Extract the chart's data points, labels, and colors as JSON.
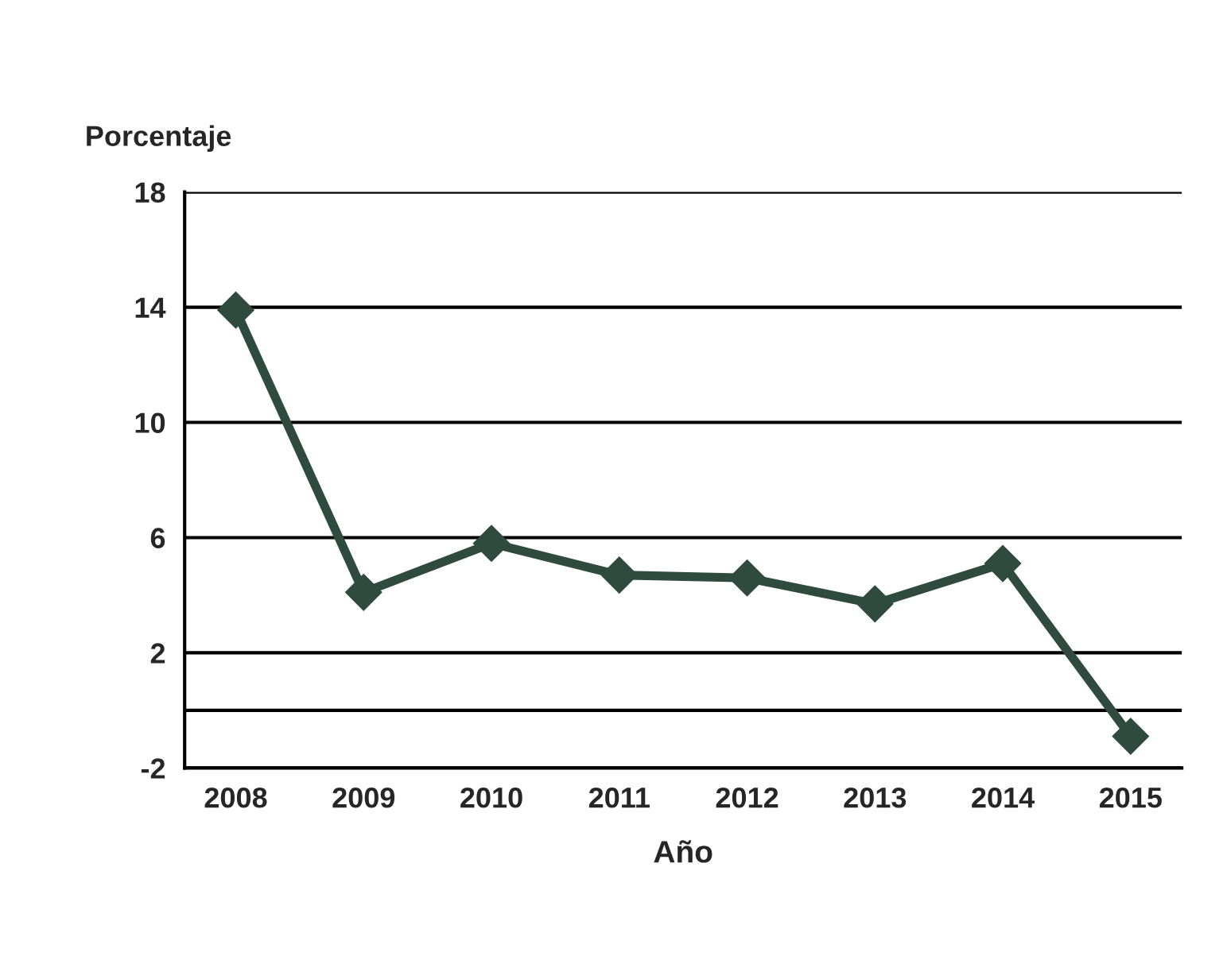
{
  "chart_data": {
    "type": "line",
    "ylabel": "Porcentaje",
    "xlabel": "Año",
    "categories": [
      "2008",
      "2009",
      "2010",
      "2011",
      "2012",
      "2013",
      "2014",
      "2015"
    ],
    "series": [
      {
        "color": "#2f4a3f",
        "values": [
          13.9,
          4.1,
          5.8,
          4.7,
          4.6,
          3.7,
          5.1,
          -0.9
        ]
      }
    ],
    "ylim": [
      -2,
      18
    ],
    "yticks": [
      -2,
      2,
      6,
      10,
      14,
      18
    ],
    "grid": "y",
    "marker": "diamond",
    "line_style": "solid",
    "legend": false,
    "ref_lines": [
      {
        "axis": "y",
        "value": 0,
        "color": "#000000"
      }
    ]
  }
}
